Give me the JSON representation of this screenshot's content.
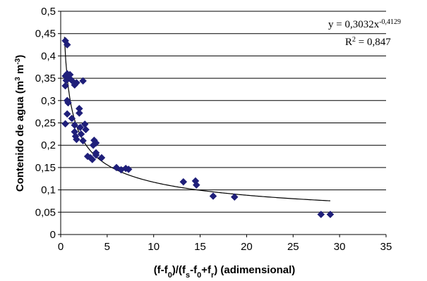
{
  "chart_data": {
    "type": "scatter",
    "xlabel_parts": [
      {
        "t": "(f-f",
        "s": ""
      },
      {
        "t": "0",
        "s": "sub"
      },
      {
        "t": ")/(f",
        "s": ""
      },
      {
        "t": "s",
        "s": "sub"
      },
      {
        "t": "-f",
        "s": ""
      },
      {
        "t": "0",
        "s": "sub"
      },
      {
        "t": "+f",
        "s": ""
      },
      {
        "t": "r",
        "s": "sub"
      },
      {
        "t": ")  (adimensional)",
        "s": ""
      }
    ],
    "ylabel_parts": [
      {
        "t": "Contenido de agua (m",
        "s": ""
      },
      {
        "t": "3",
        "s": "sup"
      },
      {
        "t": " m",
        "s": ""
      },
      {
        "t": "-3",
        "s": "sup"
      },
      {
        "t": ")",
        "s": ""
      }
    ],
    "xlim": [
      0,
      35
    ],
    "ylim": [
      0,
      0.5
    ],
    "xticks": [
      0,
      5,
      10,
      15,
      20,
      25,
      30,
      35
    ],
    "xtick_labels": [
      "0",
      "5",
      "10",
      "15",
      "20",
      "25",
      "30",
      "35"
    ],
    "yticks": [
      0,
      0.05,
      0.1,
      0.15,
      0.2,
      0.25,
      0.3,
      0.35,
      0.4,
      0.45,
      0.5
    ],
    "ytick_labels": [
      "0",
      "0,05",
      "0,1",
      "0,15",
      "0,2",
      "0,25",
      "0,3",
      "0,35",
      "0,4",
      "0,45",
      "0,5"
    ],
    "grid": "horizontal",
    "marker_color": "#1F1F7A",
    "trendline_color": "#000000",
    "trendline": {
      "type": "power",
      "a": 0.3032,
      "b": -0.4129,
      "x_range": [
        0.4,
        29
      ]
    },
    "equation_parts": [
      {
        "t": "y = 0,3032x",
        "s": ""
      },
      {
        "t": "-0,4129",
        "s": "sup"
      }
    ],
    "r2_parts": [
      {
        "t": "R",
        "s": ""
      },
      {
        "t": "2",
        "s": "sup"
      },
      {
        "t": " = 0,847",
        "s": ""
      }
    ],
    "points": [
      {
        "x": 0.5,
        "y": 0.434
      },
      {
        "x": 0.7,
        "y": 0.425
      },
      {
        "x": 0.5,
        "y": 0.355
      },
      {
        "x": 0.6,
        "y": 0.345
      },
      {
        "x": 0.7,
        "y": 0.36
      },
      {
        "x": 0.9,
        "y": 0.35
      },
      {
        "x": 1.0,
        "y": 0.358
      },
      {
        "x": 1.2,
        "y": 0.345
      },
      {
        "x": 1.5,
        "y": 0.335
      },
      {
        "x": 1.7,
        "y": 0.34
      },
      {
        "x": 2.4,
        "y": 0.344
      },
      {
        "x": 0.5,
        "y": 0.333
      },
      {
        "x": 0.7,
        "y": 0.3
      },
      {
        "x": 0.8,
        "y": 0.295
      },
      {
        "x": 0.7,
        "y": 0.27
      },
      {
        "x": 0.5,
        "y": 0.248
      },
      {
        "x": 1.2,
        "y": 0.26
      },
      {
        "x": 1.5,
        "y": 0.245
      },
      {
        "x": 1.5,
        "y": 0.23
      },
      {
        "x": 1.6,
        "y": 0.22
      },
      {
        "x": 1.7,
        "y": 0.213
      },
      {
        "x": 2.0,
        "y": 0.282
      },
      {
        "x": 2.0,
        "y": 0.272
      },
      {
        "x": 2.1,
        "y": 0.24
      },
      {
        "x": 2.2,
        "y": 0.225
      },
      {
        "x": 2.4,
        "y": 0.21
      },
      {
        "x": 2.6,
        "y": 0.247
      },
      {
        "x": 2.7,
        "y": 0.235
      },
      {
        "x": 2.9,
        "y": 0.175
      },
      {
        "x": 3.2,
        "y": 0.172
      },
      {
        "x": 3.4,
        "y": 0.168
      },
      {
        "x": 3.5,
        "y": 0.2
      },
      {
        "x": 3.6,
        "y": 0.211
      },
      {
        "x": 3.8,
        "y": 0.205
      },
      {
        "x": 3.8,
        "y": 0.183
      },
      {
        "x": 3.8,
        "y": 0.178
      },
      {
        "x": 4.4,
        "y": 0.172
      },
      {
        "x": 6.0,
        "y": 0.15
      },
      {
        "x": 6.5,
        "y": 0.145
      },
      {
        "x": 7.0,
        "y": 0.148
      },
      {
        "x": 7.3,
        "y": 0.146
      },
      {
        "x": 13.2,
        "y": 0.118
      },
      {
        "x": 14.5,
        "y": 0.12
      },
      {
        "x": 14.6,
        "y": 0.111
      },
      {
        "x": 16.4,
        "y": 0.086
      },
      {
        "x": 18.7,
        "y": 0.084
      },
      {
        "x": 28.0,
        "y": 0.045
      },
      {
        "x": 29.0,
        "y": 0.045
      }
    ]
  }
}
